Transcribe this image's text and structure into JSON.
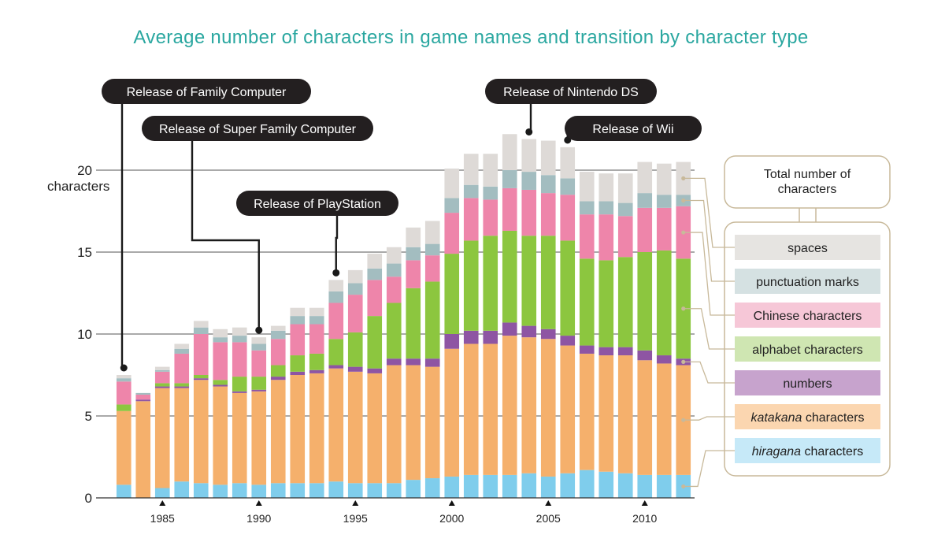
{
  "chart_data": {
    "type": "bar",
    "stacked": true,
    "title": "Average number of characters in game names and transition by character type",
    "y_unit_label": "characters",
    "ylim": [
      0,
      22.5
    ],
    "y_ticks": [
      0,
      5,
      10,
      15,
      20
    ],
    "top_tick_label": "20",
    "x": [
      1983,
      1984,
      1985,
      1986,
      1987,
      1988,
      1989,
      1990,
      1991,
      1992,
      1993,
      1994,
      1995,
      1996,
      1997,
      1998,
      1999,
      2000,
      2001,
      2002,
      2003,
      2004,
      2005,
      2006,
      2007,
      2008,
      2009,
      2010,
      2011,
      2012
    ],
    "x_tick_labels": [
      {
        "year": 1985,
        "label": "1985"
      },
      {
        "year": 1990,
        "label": "1990"
      },
      {
        "year": 1995,
        "label": "1995"
      },
      {
        "year": 2000,
        "label": "2000"
      },
      {
        "year": 2005,
        "label": "2005"
      },
      {
        "year": 2010,
        "label": "2010"
      }
    ],
    "series": [
      {
        "name": "hiragana characters",
        "name_italic": "hiragana",
        "name_rest": " characters",
        "color": "#7fcdec",
        "values": [
          0.8,
          0.0,
          0.6,
          1.0,
          0.9,
          0.8,
          0.9,
          0.8,
          0.9,
          0.9,
          0.9,
          1.0,
          0.9,
          0.9,
          0.9,
          1.1,
          1.2,
          1.3,
          1.4,
          1.4,
          1.4,
          1.5,
          1.3,
          1.5,
          1.7,
          1.6,
          1.5,
          1.4,
          1.4,
          1.4
        ]
      },
      {
        "name": "katakana characters",
        "name_italic": "katakana",
        "name_rest": " characters",
        "color": "#f5b06c",
        "values": [
          4.5,
          5.9,
          6.1,
          5.7,
          6.3,
          6.0,
          5.5,
          5.7,
          6.3,
          6.6,
          6.7,
          6.9,
          6.8,
          6.7,
          7.2,
          7.0,
          6.8,
          7.8,
          8.0,
          8.0,
          8.5,
          8.3,
          8.4,
          7.8,
          7.1,
          7.1,
          7.2,
          7.0,
          6.8,
          6.7
        ]
      },
      {
        "name": "numbers",
        "color": "#8e55a3",
        "values": [
          0.0,
          0.1,
          0.1,
          0.1,
          0.1,
          0.1,
          0.1,
          0.1,
          0.2,
          0.2,
          0.2,
          0.2,
          0.3,
          0.3,
          0.4,
          0.4,
          0.5,
          0.9,
          0.8,
          0.8,
          0.8,
          0.7,
          0.6,
          0.6,
          0.5,
          0.5,
          0.5,
          0.6,
          0.5,
          0.4
        ]
      },
      {
        "name": "alphabet characters",
        "color": "#8cc63f",
        "values": [
          0.4,
          0.0,
          0.2,
          0.2,
          0.2,
          0.3,
          0.9,
          0.8,
          0.7,
          1.0,
          1.0,
          1.6,
          2.1,
          3.2,
          3.4,
          4.3,
          4.7,
          4.9,
          5.5,
          5.8,
          5.6,
          5.5,
          5.7,
          5.8,
          5.3,
          5.3,
          5.5,
          6.0,
          6.4,
          6.1
        ]
      },
      {
        "name": "Chinese characters",
        "color": "#ee85aa",
        "values": [
          1.4,
          0.3,
          0.7,
          1.8,
          2.5,
          2.3,
          2.1,
          1.6,
          1.6,
          1.9,
          1.8,
          2.2,
          2.3,
          2.2,
          1.6,
          1.7,
          1.6,
          2.5,
          2.6,
          2.2,
          2.6,
          2.8,
          2.6,
          2.8,
          2.7,
          2.8,
          2.5,
          2.7,
          2.6,
          3.2
        ]
      },
      {
        "name": "punctuation marks",
        "color": "#a3bdc0",
        "values": [
          0.2,
          0.1,
          0.1,
          0.3,
          0.4,
          0.3,
          0.4,
          0.4,
          0.5,
          0.5,
          0.5,
          0.7,
          0.7,
          0.7,
          0.8,
          0.8,
          0.7,
          0.9,
          0.8,
          0.8,
          1.1,
          1.1,
          1.1,
          1.0,
          0.8,
          0.8,
          0.8,
          0.9,
          0.8,
          0.7
        ]
      },
      {
        "name": "spaces",
        "color": "#dedad7",
        "values": [
          0.2,
          0.0,
          0.2,
          0.3,
          0.4,
          0.5,
          0.5,
          0.4,
          0.3,
          0.5,
          0.5,
          0.7,
          0.8,
          0.9,
          1.0,
          1.2,
          1.4,
          1.8,
          1.9,
          2.0,
          2.2,
          2.0,
          2.1,
          1.9,
          1.8,
          1.7,
          1.8,
          1.9,
          1.9,
          2.0
        ]
      }
    ],
    "annotations": [
      {
        "label": "Release of Family Computer",
        "year": 1983
      },
      {
        "label": "Release of Super Family Computer",
        "year": 1990
      },
      {
        "label": "Release of PlayStation",
        "year": 1994
      },
      {
        "label": "Release of Nintendo DS",
        "year": 2004
      },
      {
        "label": "Release of Wii",
        "year": 2006
      }
    ],
    "legend": {
      "placement": "right",
      "total_label_line1": "Total number of",
      "total_label_line2": "characters",
      "order": [
        "spaces",
        "punctuation marks",
        "Chinese characters",
        "alphabet characters",
        "numbers",
        "katakana characters",
        "hiragana characters"
      ],
      "box_colors": {
        "spaces": "#e6e4e1",
        "punctuation marks": "#d5e1e2",
        "Chinese characters": "#f6c7d7",
        "alphabet characters": "#cfe6b2",
        "numbers": "#c7a3cd",
        "katakana characters": "#fbd6b0",
        "hiragana characters": "#c6e9f8"
      }
    },
    "grid": true
  }
}
